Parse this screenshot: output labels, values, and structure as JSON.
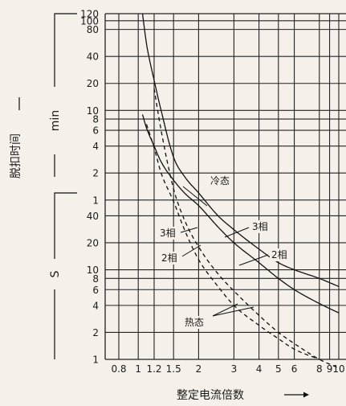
{
  "chart_data": {
    "type": "line",
    "xlabel": "整定电流倍数",
    "x_scale": "log",
    "xlim": [
      0.7,
      10
    ],
    "x_ticks": [
      0.8,
      1,
      1.2,
      1.5,
      2,
      3,
      4,
      5,
      6,
      8,
      9,
      10
    ],
    "x_tick_labels": [
      "0.8",
      "1",
      "1.2",
      "1.5",
      "2",
      "3",
      "4",
      "5",
      "6",
      "8",
      "9",
      "10"
    ],
    "ylabel": "脱扣时间",
    "y_scale": "log",
    "y_unit_labels": {
      "minutes": "min",
      "seconds": "S"
    },
    "y_ticks_min": [
      1,
      2,
      4,
      6,
      8,
      10,
      20,
      40,
      80,
      100,
      120
    ],
    "y_ticks_min_labels": [
      "1",
      "2",
      "4",
      "6",
      "8",
      "10",
      "20",
      "40",
      "80",
      "100",
      "120"
    ],
    "y_ticks_sec": [
      1,
      2,
      4,
      6,
      8,
      10,
      20,
      40
    ],
    "y_ticks_sec_labels": [
      "1",
      "2",
      "4",
      "6",
      "8",
      "10",
      "20",
      "40"
    ],
    "grid": true,
    "annotations": {
      "cold": "冷态",
      "hot": "热态",
      "three_phase": "3相",
      "two_phase": "2相"
    },
    "series": [
      {
        "name": "冷态 3相",
        "style": "solid",
        "x": [
          1.05,
          1.1,
          1.2,
          1.3,
          1.5,
          1.7,
          2,
          2.5,
          3,
          4,
          5,
          6,
          8,
          10
        ],
        "y_seconds": [
          7200,
          3300,
          1300,
          600,
          180,
          110,
          72,
          40,
          28,
          17,
          12,
          10,
          8,
          6.5
        ]
      },
      {
        "name": "冷态 2相",
        "style": "solid",
        "x": [
          1.05,
          1.1,
          1.2,
          1.3,
          1.5,
          1.7,
          2,
          2.5,
          3,
          4,
          5,
          6,
          8,
          10
        ],
        "y_seconds": [
          540,
          380,
          240,
          160,
          100,
          72,
          52,
          30,
          20,
          12,
          8,
          6,
          4.2,
          3.3
        ]
      },
      {
        "name": "热态 3相",
        "style": "dashed",
        "x": [
          1.2,
          1.3,
          1.5,
          1.7,
          2,
          2.5,
          3,
          4,
          5,
          6,
          8,
          10
        ],
        "y_seconds": [
          1050,
          360,
          80,
          36,
          18,
          9,
          5.8,
          3.1,
          2,
          1.5,
          1,
          0.8
        ]
      },
      {
        "name": "热态 2相",
        "style": "dashed",
        "x": [
          1.1,
          1.2,
          1.3,
          1.5,
          1.7,
          2,
          2.5,
          3,
          4,
          5,
          6,
          8
        ],
        "y_seconds": [
          420,
          230,
          120,
          58,
          28,
          13,
          6.5,
          4,
          2.4,
          1.7,
          1.3,
          1
        ]
      }
    ]
  }
}
